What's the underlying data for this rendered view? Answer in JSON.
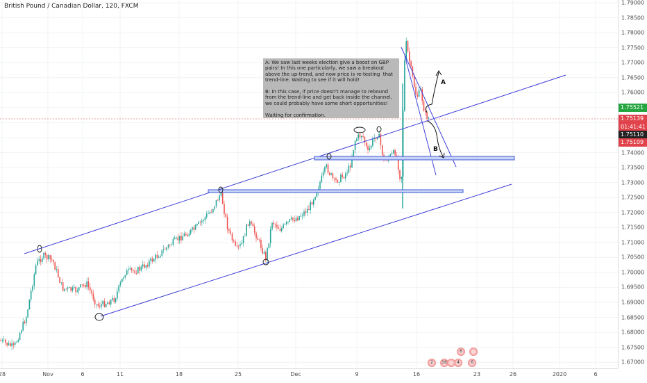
{
  "header": {
    "title": "British Pound / Canadian Dollar, 120, FXCM"
  },
  "note": {
    "text": "A: We saw last weeks election give a boost on GBP pairs! In this one particularly, we saw a breakout  above the up-trend, and now price is re-testing  that trend-line. Waiting to see if it will hold!\n\nB: In this case, if price doesn't manage to rebound from the trend-line and get back inside the channel, we could probably have some short opportunities!\n\nWaiting for confirmation."
  },
  "labels": {
    "a": "A",
    "b": "B"
  },
  "price_axis": {
    "ticks": [
      "1.79000",
      "1.78500",
      "1.78000",
      "1.77500",
      "1.77000",
      "1.76500",
      "1.76000",
      "1.75500",
      "1.75000",
      "1.74500",
      "1.74000",
      "1.73500",
      "1.73000",
      "1.72500",
      "1.72000",
      "1.71500",
      "1.71000",
      "1.70500",
      "1.70000",
      "1.69500",
      "1.69000",
      "1.68500",
      "1.68000",
      "1.67500",
      "1.67000"
    ],
    "badges": [
      {
        "value": "1.75521",
        "color": "#26a641"
      },
      {
        "value": "1.75139",
        "color": "#e0434b"
      },
      {
        "value": "01:41:41",
        "color": "#e0434b"
      },
      {
        "value": "1.75110",
        "color": "#222222"
      },
      {
        "value": "1.75109",
        "color": "#e0434b"
      }
    ]
  },
  "time_axis": {
    "ticks": [
      "28",
      "Nov",
      "6",
      "11",
      "18",
      "25",
      "Dec",
      "9",
      "16",
      "23",
      "26",
      "2020",
      "6"
    ]
  },
  "badge_counts": [
    "2",
    "16",
    "4",
    "6",
    "6"
  ],
  "colors": {
    "up": "#26a69a",
    "down": "#ef5350",
    "trend": "#3f3fd8",
    "zone": "#3f5bd8"
  },
  "chart_data": {
    "type": "candlestick",
    "title": "British Pound / Canadian Dollar, 120, FXCM",
    "ylim": [
      1.6685,
      1.7925
    ],
    "current_price": 1.75139
  }
}
